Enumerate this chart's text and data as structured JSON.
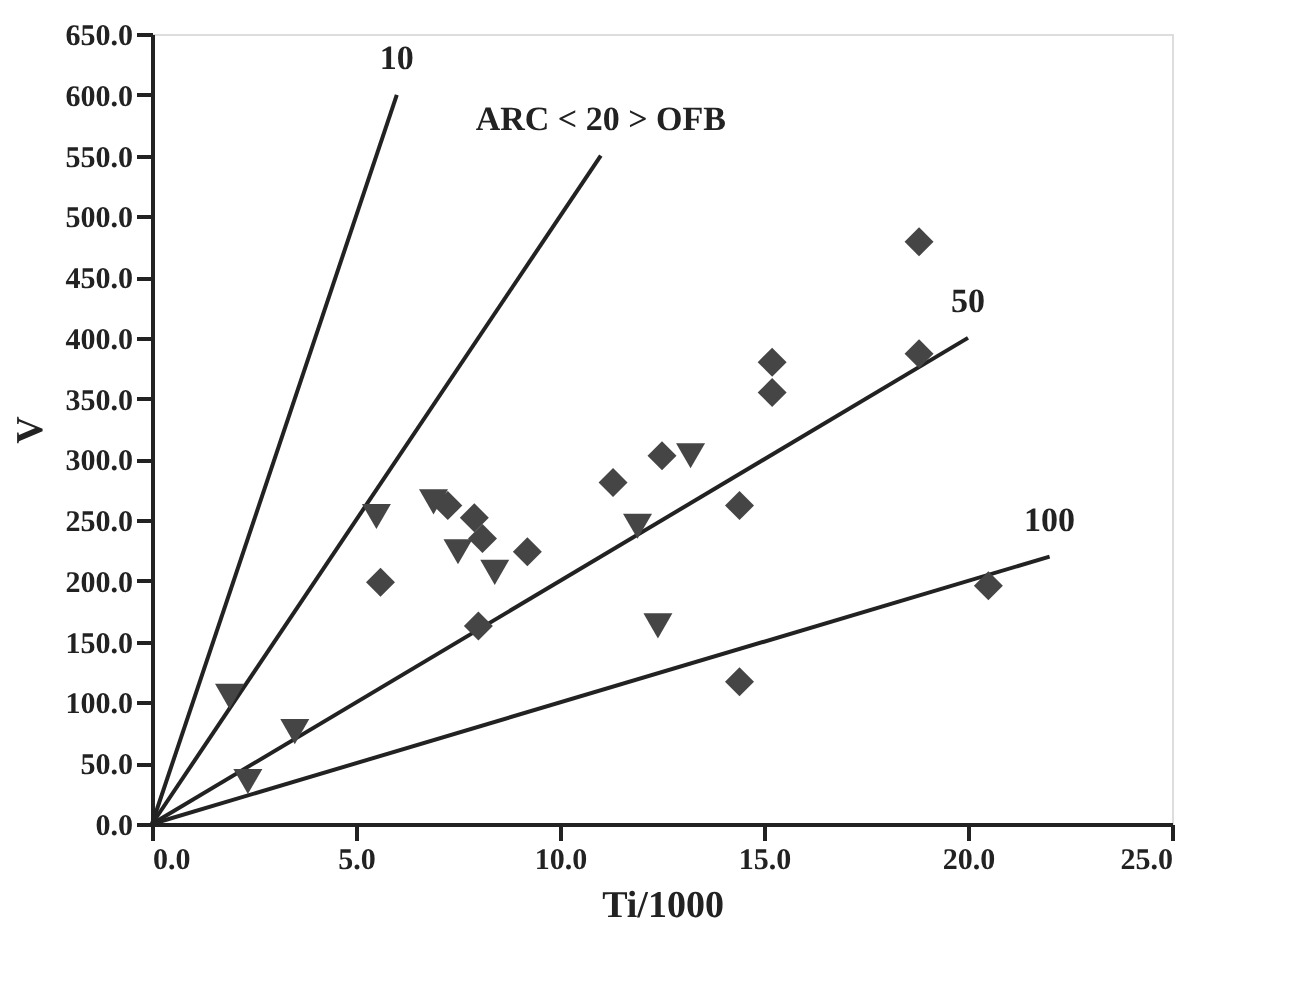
{
  "chart_data": {
    "type": "scatter",
    "xlabel": "Ti/1000",
    "ylabel": "V",
    "xlim": [
      0,
      25
    ],
    "ylim": [
      0,
      650
    ],
    "xticks": [
      {
        "value": 0,
        "label": "0.0"
      },
      {
        "value": 5,
        "label": "5.0"
      },
      {
        "value": 10,
        "label": "10.0"
      },
      {
        "value": 15,
        "label": "15.0"
      },
      {
        "value": 20,
        "label": "20.0"
      },
      {
        "value": 25,
        "label": "25.0"
      }
    ],
    "yticks": [
      {
        "value": 0,
        "label": "0.0"
      },
      {
        "value": 50,
        "label": "50.0"
      },
      {
        "value": 100,
        "label": "100.0"
      },
      {
        "value": 150,
        "label": "150.0"
      },
      {
        "value": 200,
        "label": "200.0"
      },
      {
        "value": 250,
        "label": "250.0"
      },
      {
        "value": 300,
        "label": "300.0"
      },
      {
        "value": 350,
        "label": "350.0"
      },
      {
        "value": 400,
        "label": "400.0"
      },
      {
        "value": 450,
        "label": "450.0"
      },
      {
        "value": 500,
        "label": "500.0"
      },
      {
        "value": 550,
        "label": "550.0"
      },
      {
        "value": 600,
        "label": "600.0"
      },
      {
        "value": 650,
        "label": "650.0"
      }
    ],
    "grid": false,
    "line_style": "solid",
    "series": [
      {
        "marker": "diamond",
        "color": "#454545",
        "x": [
          18.8,
          18.8,
          15.2,
          15.2,
          12.5,
          11.3,
          14.4,
          14.4,
          20.5,
          5.6,
          7.25,
          7.9,
          8.1,
          9.2,
          8.0
        ],
        "values": [
          479,
          387,
          380,
          355,
          303,
          281,
          262,
          117,
          196,
          199,
          262,
          252,
          235,
          224,
          163
        ]
      },
      {
        "marker": "triangle",
        "color": "#454545",
        "x": [
          13.2,
          11.9,
          12.4,
          1.9,
          3.5,
          2.35,
          5.5,
          7.5,
          6.9,
          8.4
        ],
        "values": [
          303,
          245,
          163,
          105,
          76,
          35,
          253,
          224,
          265,
          207
        ]
      },
      {
        "type": "line",
        "name": "10",
        "color": "#222222",
        "x": [
          0,
          6
        ],
        "values": [
          0,
          600
        ]
      },
      {
        "type": "line",
        "name": "ARC < 20 > OFB",
        "color": "#222222",
        "x": [
          0,
          11
        ],
        "values": [
          0,
          550
        ]
      },
      {
        "type": "line",
        "name": "50",
        "color": "#222222",
        "x": [
          0,
          20
        ],
        "values": [
          0,
          400
        ]
      },
      {
        "type": "line",
        "name": "100",
        "color": "#222222",
        "x": [
          0,
          22
        ],
        "values": [
          0,
          220
        ]
      }
    ]
  }
}
